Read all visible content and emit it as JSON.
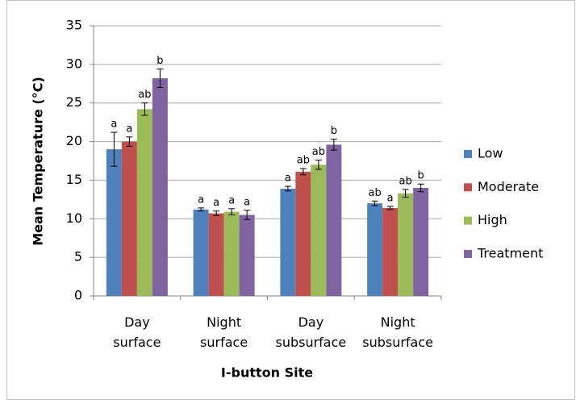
{
  "chart_data": {
    "type": "bar",
    "y_label": "Mean Temperature (°C)",
    "x_label": "I-button Site",
    "categories": [
      [
        "Day",
        "surface"
      ],
      [
        "Night",
        "surface"
      ],
      [
        "Day",
        "subsurface"
      ],
      [
        "Night",
        "subsurface"
      ]
    ],
    "series": [
      {
        "name": "Low",
        "color": "#4f81bd",
        "values": [
          19.0,
          11.2,
          13.9,
          12.0
        ],
        "errors": [
          2.2,
          0.2,
          0.3,
          0.3
        ],
        "annotations": [
          "a",
          "a",
          "a",
          "ab"
        ]
      },
      {
        "name": "Moderate",
        "color": "#c0504d",
        "values": [
          20.0,
          10.7,
          16.1,
          11.4
        ],
        "errors": [
          0.6,
          0.3,
          0.4,
          0.2
        ],
        "annotations": [
          "a",
          "a",
          "ab",
          "a"
        ]
      },
      {
        "name": "High",
        "color": "#9bbb59",
        "values": [
          24.2,
          10.9,
          17.0,
          13.3
        ],
        "errors": [
          0.8,
          0.4,
          0.6,
          0.5
        ],
        "annotations": [
          "ab",
          "a",
          "ab",
          "ab"
        ]
      },
      {
        "name": "Treatment",
        "color": "#8064a2",
        "values": [
          28.2,
          10.5,
          19.6,
          14.0
        ],
        "errors": [
          1.2,
          0.6,
          0.7,
          0.5
        ],
        "annotations": [
          "b",
          "a",
          "b",
          "b"
        ]
      }
    ],
    "ylim": [
      0,
      35
    ],
    "yticks": [
      0,
      5,
      10,
      15,
      20,
      25,
      30,
      35
    ],
    "grid": true,
    "legend": "right"
  }
}
